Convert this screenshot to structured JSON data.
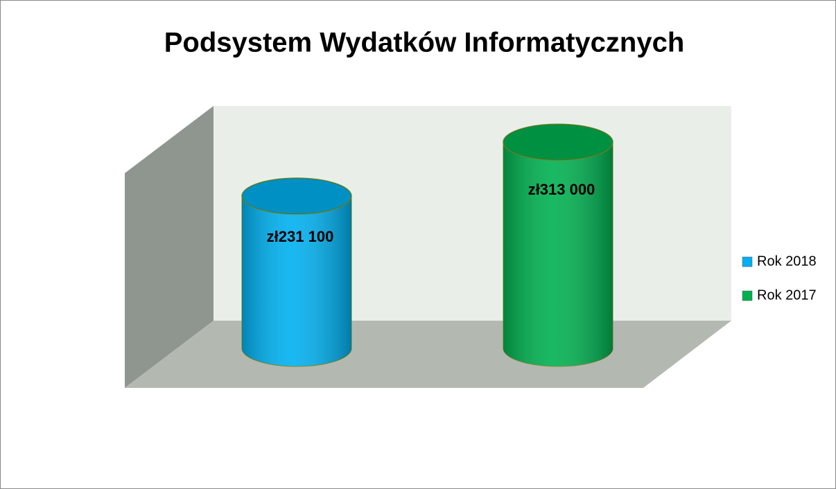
{
  "chart_data": {
    "type": "bar",
    "title": "Podsystem Wydatków Informatycznych",
    "series": [
      {
        "name": "Rok 2018",
        "color": "#00b0f0",
        "values": [
          231100
        ],
        "value_labels": [
          "zł231 100"
        ]
      },
      {
        "name": "Rok 2017",
        "color": "#00b050",
        "values": [
          313000
        ],
        "value_labels": [
          "zł313 000"
        ]
      }
    ],
    "ylim": [
      0,
      350000
    ]
  }
}
